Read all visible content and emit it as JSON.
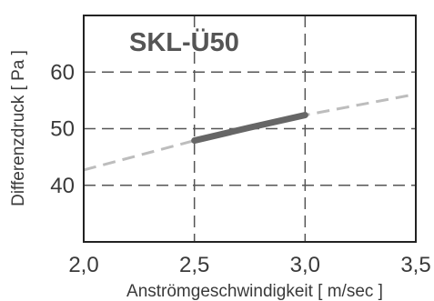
{
  "chart_data": {
    "type": "line",
    "title": "SKL-Ü50",
    "xlabel": "Anströmgeschwindigkeit [ m/sec ]",
    "ylabel": "Differenzdruck [ Pa ]",
    "xlim": [
      2.0,
      3.5
    ],
    "ylim": [
      30,
      70
    ],
    "x_ticks": [
      "2,0",
      "2,5",
      "3,0",
      "3,5"
    ],
    "y_ticks": [
      "40",
      "50",
      "60"
    ],
    "x_tick_values": [
      2.0,
      2.5,
      3.0,
      3.5
    ],
    "y_tick_values": [
      40,
      50,
      60
    ],
    "grid": true,
    "series": [
      {
        "style": "dashed-extrapolation",
        "color": "#bdbdbd",
        "x": [
          2.0,
          2.5,
          3.0,
          3.5
        ],
        "y": [
          42.7,
          47.9,
          52.4,
          56.1
        ]
      },
      {
        "style": "solid-operating-range",
        "color": "#666666",
        "x": [
          2.5,
          2.75,
          3.0
        ],
        "y": [
          47.9,
          50.2,
          52.4
        ]
      }
    ]
  }
}
